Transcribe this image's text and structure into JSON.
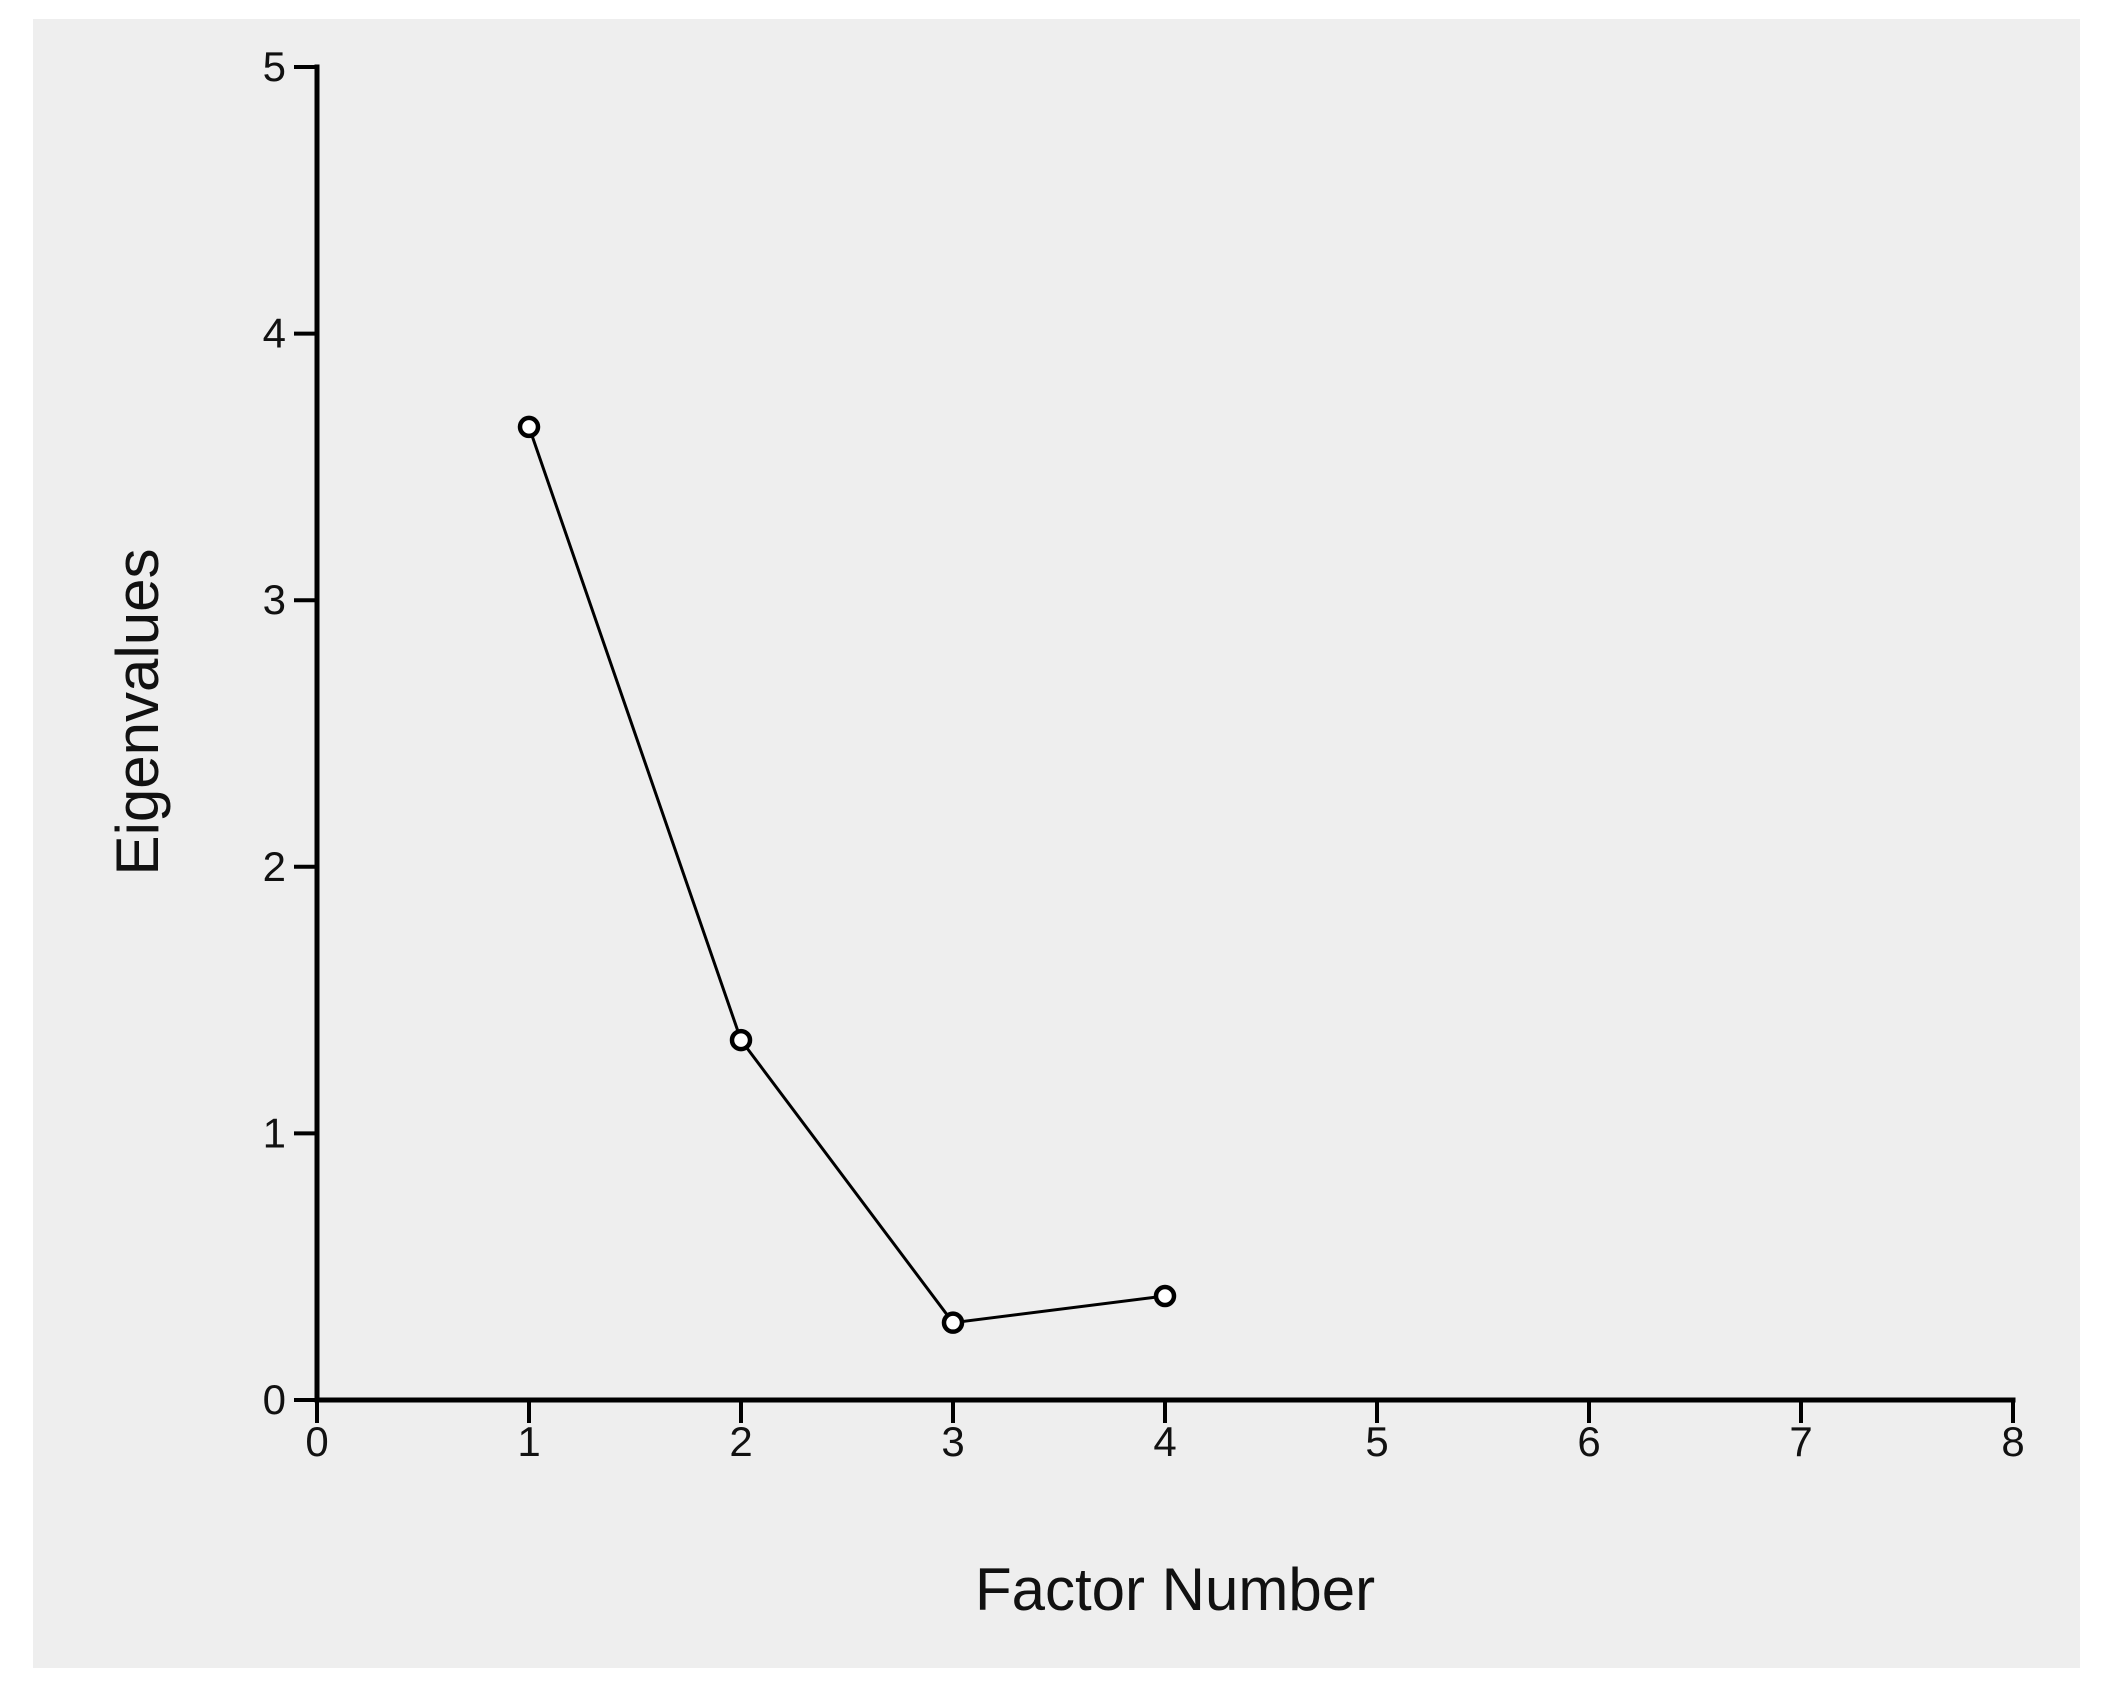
{
  "figure": {
    "background": "#ffffff",
    "panel_background": "#eeeeee",
    "axis_color": "#000000",
    "text_color": "#111111"
  },
  "chart_data": {
    "type": "line",
    "title": "",
    "xlabel": "Factor Number",
    "ylabel": "Eigenvalues",
    "x": [
      1,
      2,
      3,
      4
    ],
    "y": [
      3.65,
      1.35,
      0.29,
      0.39
    ],
    "series": [
      {
        "name": "Eigenvalues",
        "values": [
          3.65,
          1.35,
          0.29,
          0.39
        ]
      }
    ],
    "xlim": [
      0,
      8
    ],
    "ylim": [
      0,
      5
    ],
    "x_ticks": [
      0,
      1,
      2,
      3,
      4,
      5,
      6,
      7,
      8
    ],
    "y_ticks": [
      0,
      1,
      2,
      3,
      4,
      5
    ],
    "grid": false,
    "legend": "none",
    "marker": "open-circle",
    "line_color": "#000000",
    "marker_fill": "#ffffff"
  }
}
